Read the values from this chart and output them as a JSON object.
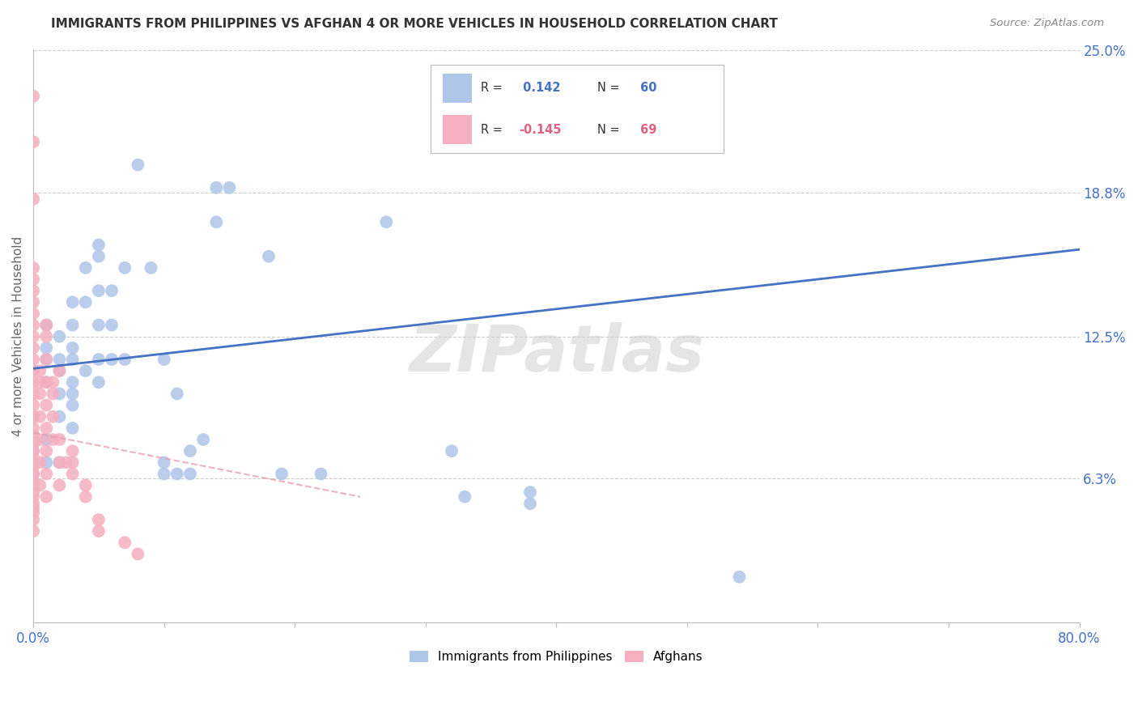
{
  "title": "IMMIGRANTS FROM PHILIPPINES VS AFGHAN 4 OR MORE VEHICLES IN HOUSEHOLD CORRELATION CHART",
  "source": "Source: ZipAtlas.com",
  "ylabel": "4 or more Vehicles in Household",
  "xlim": [
    0.0,
    0.8
  ],
  "ylim": [
    0.0,
    0.25
  ],
  "xticks": [
    0.0,
    0.1,
    0.2,
    0.3,
    0.4,
    0.5,
    0.6,
    0.7,
    0.8
  ],
  "xticklabels": [
    "0.0%",
    "",
    "",
    "",
    "",
    "",
    "",
    "",
    "80.0%"
  ],
  "ytick_labels_right": [
    "25.0%",
    "18.8%",
    "12.5%",
    "6.3%"
  ],
  "ytick_values_right": [
    0.25,
    0.188,
    0.125,
    0.063
  ],
  "grid_color": "#cccccc",
  "background_color": "#ffffff",
  "philippines_color": "#aec6e8",
  "afghan_color": "#f5afc0",
  "philippines_line_color": "#4472c4",
  "afghan_line_color": "#e8a0b0",
  "R_philippines": 0.142,
  "N_philippines": 60,
  "R_afghan": -0.145,
  "N_afghan": 69,
  "watermark": "ZIPatlas",
  "phil_line_x0": 0.0,
  "phil_line_y0": 0.111,
  "phil_line_x1": 0.8,
  "phil_line_y1": 0.163,
  "afgh_line_x0": 0.0,
  "afgh_line_y0": 0.083,
  "afgh_line_x1": 0.25,
  "afgh_line_y1": 0.055,
  "philippines_data": [
    [
      0.0,
      0.065
    ],
    [
      0.0,
      0.075
    ],
    [
      0.0,
      0.09
    ],
    [
      0.0,
      0.11
    ],
    [
      0.01,
      0.07
    ],
    [
      0.01,
      0.08
    ],
    [
      0.01,
      0.105
    ],
    [
      0.01,
      0.115
    ],
    [
      0.01,
      0.12
    ],
    [
      0.01,
      0.13
    ],
    [
      0.02,
      0.07
    ],
    [
      0.02,
      0.09
    ],
    [
      0.02,
      0.1
    ],
    [
      0.02,
      0.11
    ],
    [
      0.02,
      0.115
    ],
    [
      0.02,
      0.125
    ],
    [
      0.03,
      0.085
    ],
    [
      0.03,
      0.095
    ],
    [
      0.03,
      0.1
    ],
    [
      0.03,
      0.105
    ],
    [
      0.03,
      0.115
    ],
    [
      0.03,
      0.12
    ],
    [
      0.03,
      0.13
    ],
    [
      0.03,
      0.14
    ],
    [
      0.04,
      0.11
    ],
    [
      0.04,
      0.14
    ],
    [
      0.04,
      0.155
    ],
    [
      0.05,
      0.105
    ],
    [
      0.05,
      0.115
    ],
    [
      0.05,
      0.13
    ],
    [
      0.05,
      0.145
    ],
    [
      0.05,
      0.16
    ],
    [
      0.05,
      0.165
    ],
    [
      0.06,
      0.115
    ],
    [
      0.06,
      0.13
    ],
    [
      0.06,
      0.145
    ],
    [
      0.07,
      0.115
    ],
    [
      0.07,
      0.155
    ],
    [
      0.08,
      0.2
    ],
    [
      0.09,
      0.155
    ],
    [
      0.1,
      0.065
    ],
    [
      0.1,
      0.07
    ],
    [
      0.1,
      0.115
    ],
    [
      0.11,
      0.065
    ],
    [
      0.11,
      0.1
    ],
    [
      0.12,
      0.065
    ],
    [
      0.12,
      0.075
    ],
    [
      0.13,
      0.08
    ],
    [
      0.14,
      0.175
    ],
    [
      0.14,
      0.19
    ],
    [
      0.15,
      0.19
    ],
    [
      0.18,
      0.16
    ],
    [
      0.19,
      0.065
    ],
    [
      0.22,
      0.065
    ],
    [
      0.27,
      0.175
    ],
    [
      0.32,
      0.075
    ],
    [
      0.33,
      0.055
    ],
    [
      0.38,
      0.052
    ],
    [
      0.38,
      0.057
    ],
    [
      0.54,
      0.02
    ]
  ],
  "afghan_data": [
    [
      0.0,
      0.04
    ],
    [
      0.0,
      0.045
    ],
    [
      0.0,
      0.048
    ],
    [
      0.0,
      0.05
    ],
    [
      0.0,
      0.052
    ],
    [
      0.0,
      0.055
    ],
    [
      0.0,
      0.057
    ],
    [
      0.0,
      0.06
    ],
    [
      0.0,
      0.062
    ],
    [
      0.0,
      0.065
    ],
    [
      0.0,
      0.068
    ],
    [
      0.0,
      0.07
    ],
    [
      0.0,
      0.072
    ],
    [
      0.0,
      0.075
    ],
    [
      0.0,
      0.078
    ],
    [
      0.0,
      0.08
    ],
    [
      0.0,
      0.082
    ],
    [
      0.0,
      0.085
    ],
    [
      0.0,
      0.09
    ],
    [
      0.0,
      0.095
    ],
    [
      0.0,
      0.1
    ],
    [
      0.0,
      0.105
    ],
    [
      0.0,
      0.11
    ],
    [
      0.0,
      0.115
    ],
    [
      0.0,
      0.12
    ],
    [
      0.0,
      0.125
    ],
    [
      0.0,
      0.13
    ],
    [
      0.0,
      0.135
    ],
    [
      0.0,
      0.14
    ],
    [
      0.0,
      0.145
    ],
    [
      0.0,
      0.15
    ],
    [
      0.0,
      0.155
    ],
    [
      0.0,
      0.185
    ],
    [
      0.0,
      0.21
    ],
    [
      0.0,
      0.23
    ],
    [
      0.005,
      0.06
    ],
    [
      0.005,
      0.07
    ],
    [
      0.005,
      0.08
    ],
    [
      0.005,
      0.09
    ],
    [
      0.005,
      0.1
    ],
    [
      0.005,
      0.105
    ],
    [
      0.005,
      0.11
    ],
    [
      0.01,
      0.055
    ],
    [
      0.01,
      0.065
    ],
    [
      0.01,
      0.075
    ],
    [
      0.01,
      0.085
    ],
    [
      0.01,
      0.095
    ],
    [
      0.01,
      0.105
    ],
    [
      0.01,
      0.115
    ],
    [
      0.01,
      0.125
    ],
    [
      0.01,
      0.13
    ],
    [
      0.015,
      0.08
    ],
    [
      0.015,
      0.09
    ],
    [
      0.015,
      0.1
    ],
    [
      0.015,
      0.105
    ],
    [
      0.02,
      0.06
    ],
    [
      0.02,
      0.07
    ],
    [
      0.02,
      0.08
    ],
    [
      0.02,
      0.11
    ],
    [
      0.025,
      0.07
    ],
    [
      0.03,
      0.065
    ],
    [
      0.03,
      0.07
    ],
    [
      0.03,
      0.075
    ],
    [
      0.04,
      0.055
    ],
    [
      0.04,
      0.06
    ],
    [
      0.05,
      0.04
    ],
    [
      0.05,
      0.045
    ],
    [
      0.07,
      0.035
    ],
    [
      0.08,
      0.03
    ]
  ]
}
